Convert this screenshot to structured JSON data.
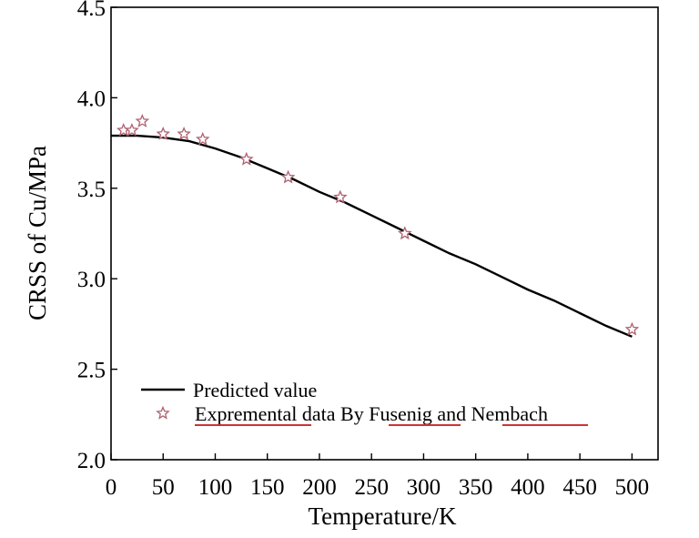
{
  "chart_data": {
    "type": "line",
    "title": "",
    "xlabel": "Temperature/K",
    "ylabel": "CRSS of Cu/MPa",
    "xlim": [
      0,
      525
    ],
    "ylim": [
      2.0,
      4.5
    ],
    "xticks": [
      0,
      50,
      100,
      150,
      200,
      250,
      300,
      350,
      400,
      450,
      500
    ],
    "yticks": [
      2.0,
      2.5,
      3.0,
      3.5,
      4.0,
      4.5
    ],
    "xtick_labels": [
      "0",
      "50",
      "100",
      "150",
      "200",
      "250",
      "300",
      "350",
      "400",
      "450",
      "500"
    ],
    "ytick_labels": [
      "2.0",
      "2.5",
      "3.0",
      "3.5",
      "4.0",
      "4.5"
    ],
    "grid": false,
    "legend_position": "bottom-left",
    "series": [
      {
        "name": "Predicted value",
        "kind": "line",
        "color": "#000000",
        "x": [
          0,
          25,
          50,
          75,
          100,
          125,
          150,
          175,
          200,
          225,
          250,
          275,
          300,
          325,
          350,
          375,
          400,
          425,
          450,
          475,
          500
        ],
        "y": [
          3.79,
          3.79,
          3.78,
          3.76,
          3.72,
          3.67,
          3.61,
          3.55,
          3.48,
          3.42,
          3.35,
          3.28,
          3.21,
          3.14,
          3.08,
          3.01,
          2.94,
          2.88,
          2.81,
          2.74,
          2.68
        ]
      },
      {
        "name": "Expremental data By Fusenig and Nembach",
        "kind": "scatter",
        "marker": "star",
        "color": "#b06070",
        "x": [
          12,
          20,
          30,
          50,
          70,
          88,
          130,
          170,
          220,
          282,
          500
        ],
        "y": [
          3.82,
          3.82,
          3.87,
          3.8,
          3.8,
          3.77,
          3.66,
          3.56,
          3.45,
          3.25,
          2.72
        ]
      }
    ],
    "underline_color": "#cc3333"
  }
}
